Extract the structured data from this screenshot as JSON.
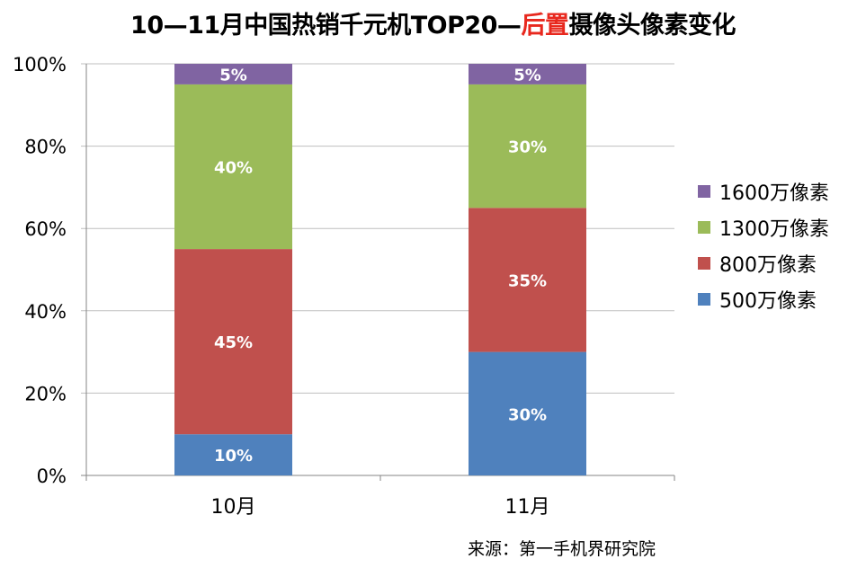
{
  "title": {
    "part1": "10—11月中国热销千元机TOP20—",
    "highlight": "后置",
    "part2": "摄像头像素变化",
    "highlight_color": "#e8281e"
  },
  "chart_data": {
    "type": "bar",
    "stacked": true,
    "categories": [
      "10月",
      "11月"
    ],
    "series": [
      {
        "name": "500万像素",
        "values": [
          10,
          30
        ],
        "color": "#4f81bd",
        "labels": [
          "10%",
          "30%"
        ]
      },
      {
        "name": "800万像素",
        "values": [
          45,
          35
        ],
        "color": "#c0504d",
        "labels": [
          "45%",
          "35%"
        ]
      },
      {
        "name": "1300万像素",
        "values": [
          40,
          30
        ],
        "color": "#9bbb59",
        "labels": [
          "40%",
          "30%"
        ]
      },
      {
        "name": "1600万像素",
        "values": [
          5,
          5
        ],
        "color": "#8064a2",
        "labels": [
          "5%",
          "5%"
        ]
      }
    ],
    "ylim": [
      0,
      100
    ],
    "yticks": [
      "0%",
      "20%",
      "40%",
      "60%",
      "80%",
      "100%"
    ],
    "grid": true,
    "legend_position": "right"
  },
  "source": "来源：第一手机界研究院"
}
